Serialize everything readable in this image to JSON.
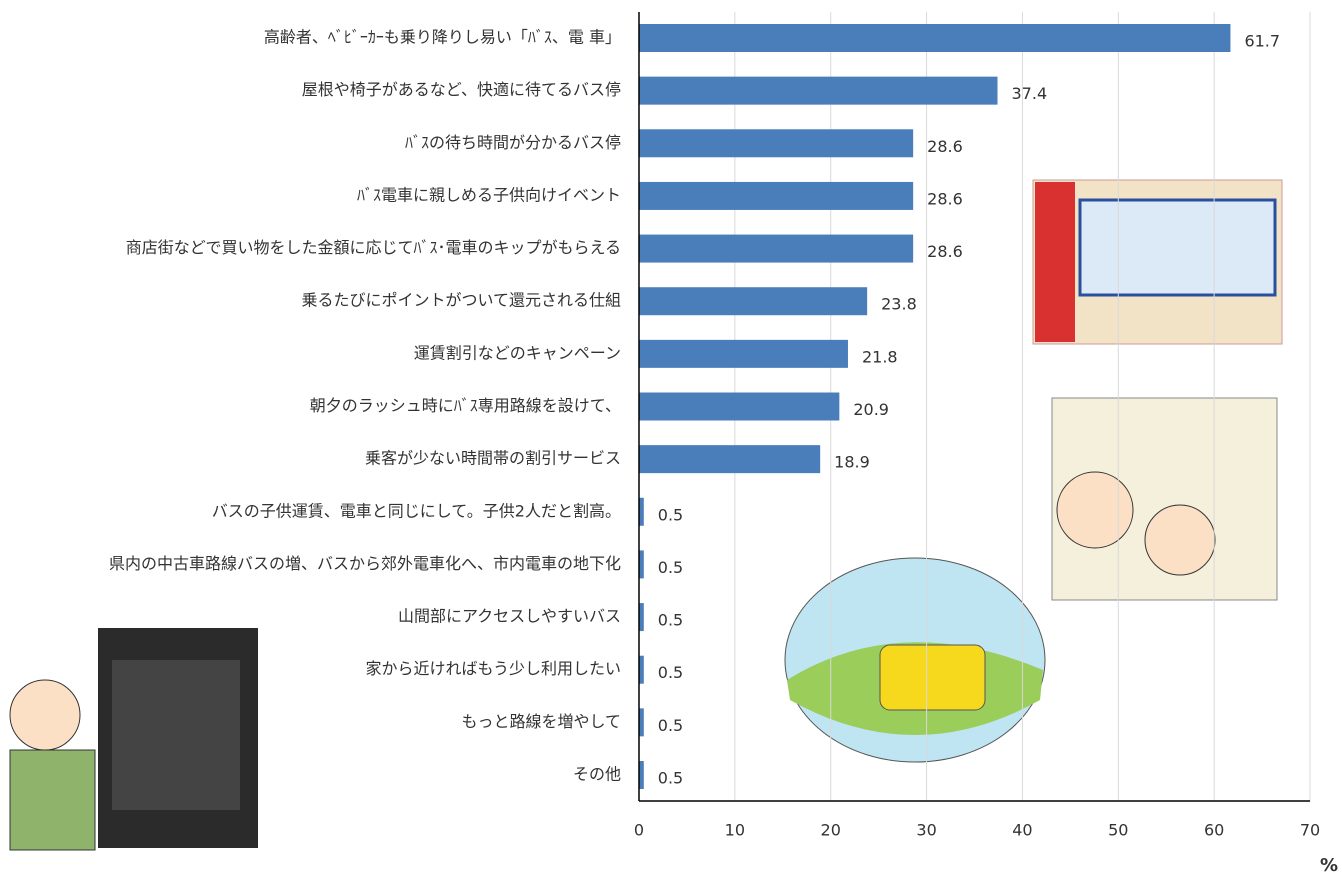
{
  "chart_data": {
    "type": "hbar",
    "orientation": "horizontal",
    "categories": [
      "高齢者、ﾍﾞﾋﾞｰｶｰも乗り降りし易い「ﾊﾞｽ、電 車」",
      "屋根や椅子があるなど、快適に待てるバス停",
      "ﾊﾞｽの待ち時間が分かるバス停",
      "ﾊﾞｽ電車に親しめる子供向けイベント",
      "商店街などで買い物をした金額に応じてﾊﾞｽ･電車のキップがもらえる",
      "乗るたびにポイントがついて還元される仕組",
      "運賃割引などのキャンペーン",
      "朝夕のラッシュ時にﾊﾞｽ専用路線を設けて、",
      "乗客が少ない時間帯の割引サービス",
      "バスの子供運賃、電車と同じにして。子供2人だと割高。",
      "県内の中古車路線バスの増、バスから郊外電車化へ、市内電車の地下化",
      "山間部にアクセスしやすいバス",
      "家から近ければもう少し利用したい",
      "もっと路線を増やして",
      "その他"
    ],
    "values": [
      61.7,
      37.4,
      28.6,
      28.6,
      28.6,
      23.8,
      21.8,
      20.9,
      18.9,
      0.5,
      0.5,
      0.5,
      0.5,
      0.5,
      0.5
    ],
    "color": "#4a7ebb",
    "xlim": [
      0,
      70
    ],
    "xticks": [
      0,
      10,
      20,
      30,
      40,
      50,
      60,
      70
    ],
    "grid": true,
    "xlabel": "%"
  }
}
